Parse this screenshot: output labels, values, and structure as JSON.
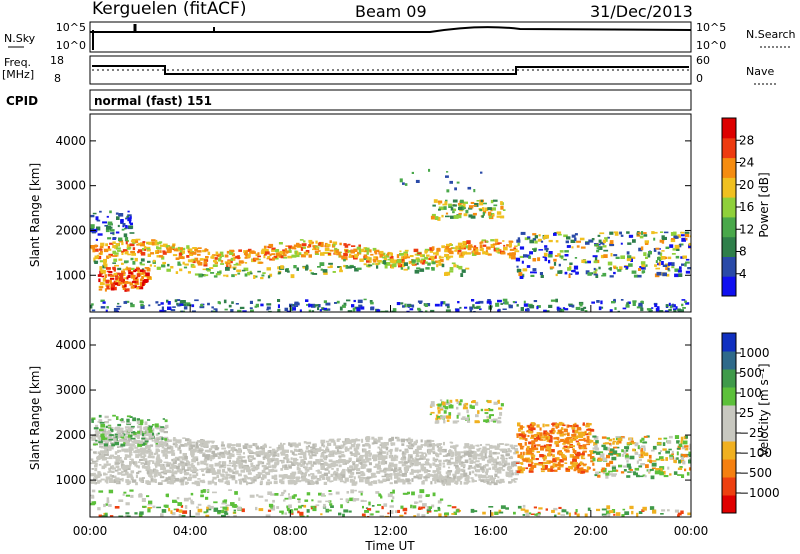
{
  "header": {
    "station": "Kerguelen (fitACF)",
    "beam": "Beam 09",
    "date": "31/Dec/2013"
  },
  "strips": {
    "nsky_label": "N.Sky",
    "nsky_ticks": [
      "10^5",
      "10^0"
    ],
    "nsearch_label": "N.Search",
    "nsearch_ticks": [
      "10^5",
      "10^0"
    ],
    "freq_label_1": "Freq.",
    "freq_label_2": "[MHz]",
    "freq_ticks": [
      "18",
      "8"
    ],
    "nave_label": "Nave",
    "nave_ticks": [
      "60",
      "0"
    ],
    "cpid_label": "CPID",
    "cpid_value": "normal (fast) 151"
  },
  "chart_data": [
    {
      "type": "heatmap",
      "title": "",
      "ylabel": "Slant Range [km]",
      "xlabel": "",
      "xlim": [
        "00:00",
        "00:00"
      ],
      "ylim": [
        180,
        4600
      ],
      "y_ticks": [
        "1000",
        "2000",
        "3000",
        "4000"
      ],
      "colorbar": {
        "label": "Power [dB]",
        "ticks": [
          "4",
          "8",
          "12",
          "16",
          "20",
          "24",
          "28"
        ],
        "colors": [
          "#1010f0",
          "#2a4aa8",
          "#2f7f4a",
          "#49a84a",
          "#8fd03a",
          "#f0c020",
          "#f58c10",
          "#ee3a10",
          "#dd0000"
        ]
      },
      "bands": [
        {
          "start": "00:00",
          "end": "17:00",
          "range_km": [
            1350,
            1700
          ],
          "level_db": "16-28"
        },
        {
          "start": "00:00",
          "end": "02:30",
          "range_km": [
            700,
            1200
          ],
          "level_db": "20-28"
        },
        {
          "start": "13:30",
          "end": "16:30",
          "range_km": [
            2300,
            2700
          ],
          "level_db": "8-20"
        },
        {
          "start": "17:00",
          "end": "24:00",
          "range_km": [
            1000,
            2000
          ],
          "level_db": "4-20"
        }
      ]
    },
    {
      "type": "heatmap",
      "title": "",
      "ylabel": "Slant Range [km]",
      "xlabel": "Time UT",
      "x_ticks": [
        "00:00",
        "04:00",
        "08:00",
        "12:00",
        "16:00",
        "20:00",
        "00:00"
      ],
      "ylim": [
        180,
        4600
      ],
      "y_ticks": [
        "1000",
        "2000",
        "3000",
        "4000"
      ],
      "colorbar": {
        "label": "Velocity [m s⁻¹]",
        "ticks": [
          "1000",
          "500",
          "100",
          "25",
          "−25",
          "−100",
          "−500",
          "−1000"
        ],
        "colors": [
          "#1030c0",
          "#2f6a8a",
          "#3f9a4a",
          "#5cc03a",
          "#c8c8c0",
          "#c8c8c0",
          "#f0b020",
          "#f58010",
          "#ee4010",
          "#e00000"
        ]
      },
      "bands": [
        {
          "start": "00:00",
          "end": "17:00",
          "range_km": [
            900,
            2100
          ],
          "velocity": "-25..25"
        },
        {
          "start": "17:00",
          "end": "20:00",
          "range_km": [
            1200,
            2300
          ],
          "velocity": "-100..-500"
        },
        {
          "start": "20:00",
          "end": "24:00",
          "range_km": [
            1100,
            2000
          ],
          "velocity": "mixed"
        }
      ]
    }
  ]
}
